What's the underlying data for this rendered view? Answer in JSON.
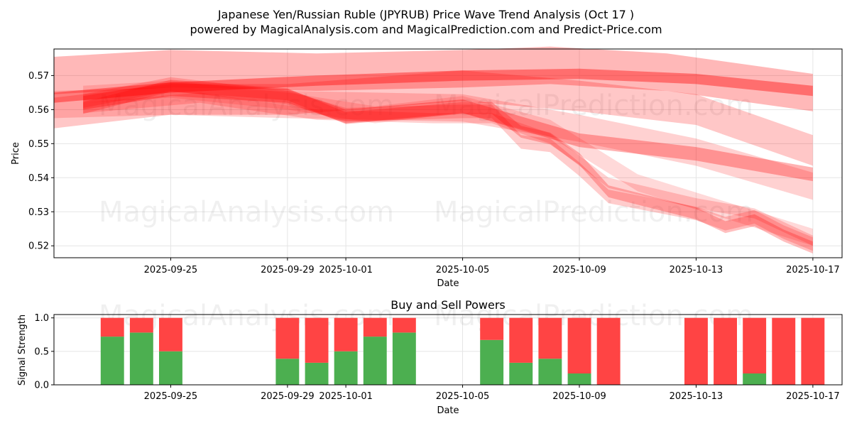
{
  "header": {
    "title": "Japanese Yen/Russian Ruble (JPYRUB) Price Wave Trend Analysis (Oct 17 )",
    "subtitle": "powered by MagicalAnalysis.com and MagicalPrediction.com and Predict-Price.com"
  },
  "watermarks": [
    "MagicalAnalysis.com",
    "MagicalPrediction.com"
  ],
  "colors": {
    "wave": "#ff0000",
    "buy": "#4caf50",
    "sell": "#ff4444",
    "grid": "#e5e5e5"
  },
  "chart_data": [
    {
      "type": "area",
      "title": "",
      "xlabel": "Date",
      "ylabel": "Price",
      "xlim": [
        "2025-09-21",
        "2025-10-18"
      ],
      "ylim": [
        0.5165,
        0.5778
      ],
      "x_ticks": [
        "2025-09-25",
        "2025-09-29",
        "2025-10-01",
        "2025-10-05",
        "2025-10-09",
        "2025-10-13",
        "2025-10-17"
      ],
      "y_ticks": [
        0.52,
        0.53,
        0.54,
        0.55,
        0.56,
        0.57
      ],
      "grid": true,
      "series": [
        {
          "dates": [
            "2025-09-21",
            "2025-09-25",
            "2025-09-30",
            "2025-10-05",
            "2025-10-08",
            "2025-10-12",
            "2025-10-17"
          ],
          "center": [
            0.57,
            0.572,
            0.571,
            0.572,
            0.573,
            0.571,
            0.565
          ],
          "width": 0.011,
          "opacity": 0.28
        },
        {
          "dates": [
            "2025-09-21",
            "2025-09-25",
            "2025-09-30",
            "2025-10-05",
            "2025-10-09",
            "2025-10-13",
            "2025-10-17"
          ],
          "center": [
            0.5635,
            0.5665,
            0.5685,
            0.57,
            0.5705,
            0.569,
            0.5655
          ],
          "width": 0.003,
          "opacity": 0.4
        },
        {
          "dates": [
            "2025-09-21",
            "2025-09-25",
            "2025-09-29",
            "2025-10-05",
            "2025-10-09",
            "2025-10-13",
            "2025-10-17"
          ],
          "center": [
            0.559,
            0.563,
            0.563,
            0.567,
            0.564,
            0.56,
            0.548
          ],
          "width": 0.009,
          "opacity": 0.22
        },
        {
          "dates": [
            "2025-09-22",
            "2025-09-25",
            "2025-09-29",
            "2025-10-01",
            "2025-10-05",
            "2025-10-07",
            "2025-10-09",
            "2025-10-13",
            "2025-10-17"
          ],
          "center": [
            0.562,
            0.566,
            0.564,
            0.558,
            0.561,
            0.556,
            0.551,
            0.547,
            0.541
          ],
          "width": 0.004,
          "opacity": 0.3
        },
        {
          "dates": [
            "2025-09-22",
            "2025-09-25",
            "2025-09-29",
            "2025-10-01",
            "2025-10-05",
            "2025-10-06",
            "2025-10-07",
            "2025-10-08",
            "2025-10-09",
            "2025-10-10",
            "2025-10-13",
            "2025-10-14",
            "2025-10-15",
            "2025-10-16",
            "2025-10-17"
          ],
          "center": [
            0.5605,
            0.567,
            0.5645,
            0.5575,
            0.5605,
            0.5605,
            0.5535,
            0.5515,
            0.5455,
            0.536,
            0.5295,
            0.5255,
            0.5275,
            0.523,
            0.5195
          ],
          "width": 0.0035,
          "opacity": 0.25
        },
        {
          "dates": [
            "2025-09-22",
            "2025-09-25",
            "2025-09-29",
            "2025-10-01",
            "2025-10-05",
            "2025-10-06",
            "2025-10-07",
            "2025-10-08",
            "2025-10-09",
            "2025-10-10",
            "2025-10-13",
            "2025-10-14",
            "2025-10-15",
            "2025-10-16",
            "2025-10-17"
          ],
          "center": [
            0.5625,
            0.5675,
            0.5635,
            0.5585,
            0.5595,
            0.5595,
            0.5505,
            0.5495,
            0.5425,
            0.5345,
            0.5295,
            0.5265,
            0.5285,
            0.524,
            0.5205
          ],
          "width": 0.004,
          "opacity": 0.2
        },
        {
          "dates": [
            "2025-09-22",
            "2025-09-26",
            "2025-09-30",
            "2025-10-04",
            "2025-10-06",
            "2025-10-08",
            "2025-10-10",
            "2025-10-13",
            "2025-10-15",
            "2025-10-17"
          ],
          "center": [
            0.5605,
            0.5635,
            0.5585,
            0.5575,
            0.5575,
            0.5515,
            0.5385,
            0.5325,
            0.5295,
            0.5215
          ],
          "width": 0.003,
          "opacity": 0.18
        },
        {
          "dates": [
            "2025-09-21",
            "2025-09-25",
            "2025-09-29",
            "2025-10-05",
            "2025-10-09",
            "2025-10-13",
            "2025-10-17"
          ],
          "center": [
            0.5615,
            0.5625,
            0.5615,
            0.5605,
            0.5545,
            0.5475,
            0.5375
          ],
          "width": 0.008,
          "opacity": 0.18
        },
        {
          "dates": [
            "2025-09-22",
            "2025-09-25",
            "2025-09-29",
            "2025-10-02",
            "2025-10-05",
            "2025-10-08",
            "2025-10-11",
            "2025-10-14",
            "2025-10-17"
          ],
          "center": [
            0.5645,
            0.566,
            0.5625,
            0.5585,
            0.5615,
            0.5545,
            0.5385,
            0.5305,
            0.5225
          ],
          "width": 0.005,
          "opacity": 0.15
        }
      ]
    },
    {
      "type": "bar",
      "title": "Buy and Sell Powers",
      "xlabel": "Date",
      "ylabel": "Signal Strength",
      "xlim": [
        "2025-09-21",
        "2025-10-18"
      ],
      "ylim": [
        0,
        1.05
      ],
      "x_ticks": [
        "2025-09-25",
        "2025-09-29",
        "2025-10-01",
        "2025-10-05",
        "2025-10-09",
        "2025-10-13",
        "2025-10-17"
      ],
      "y_ticks": [
        0.0,
        0.5,
        1.0
      ],
      "grid": true,
      "dates": [
        "2025-09-23",
        "2025-09-24",
        "2025-09-25",
        "2025-09-29",
        "2025-09-30",
        "2025-10-01",
        "2025-10-02",
        "2025-10-03",
        "2025-10-06",
        "2025-10-07",
        "2025-10-08",
        "2025-10-09",
        "2025-10-10",
        "2025-10-13",
        "2025-10-14",
        "2025-10-15",
        "2025-10-16",
        "2025-10-17"
      ],
      "series": [
        {
          "name": "Buy",
          "values": [
            0.72,
            0.78,
            0.5,
            0.39,
            0.33,
            0.5,
            0.72,
            0.78,
            0.67,
            0.33,
            0.39,
            0.17,
            0.0,
            0.0,
            0.0,
            0.17,
            0.0,
            0.0
          ]
        },
        {
          "name": "Sell",
          "values": [
            0.28,
            0.22,
            0.5,
            0.61,
            0.67,
            0.5,
            0.28,
            0.22,
            0.33,
            0.67,
            0.61,
            0.83,
            1.0,
            1.0,
            1.0,
            0.83,
            1.0,
            1.0
          ]
        }
      ]
    }
  ]
}
